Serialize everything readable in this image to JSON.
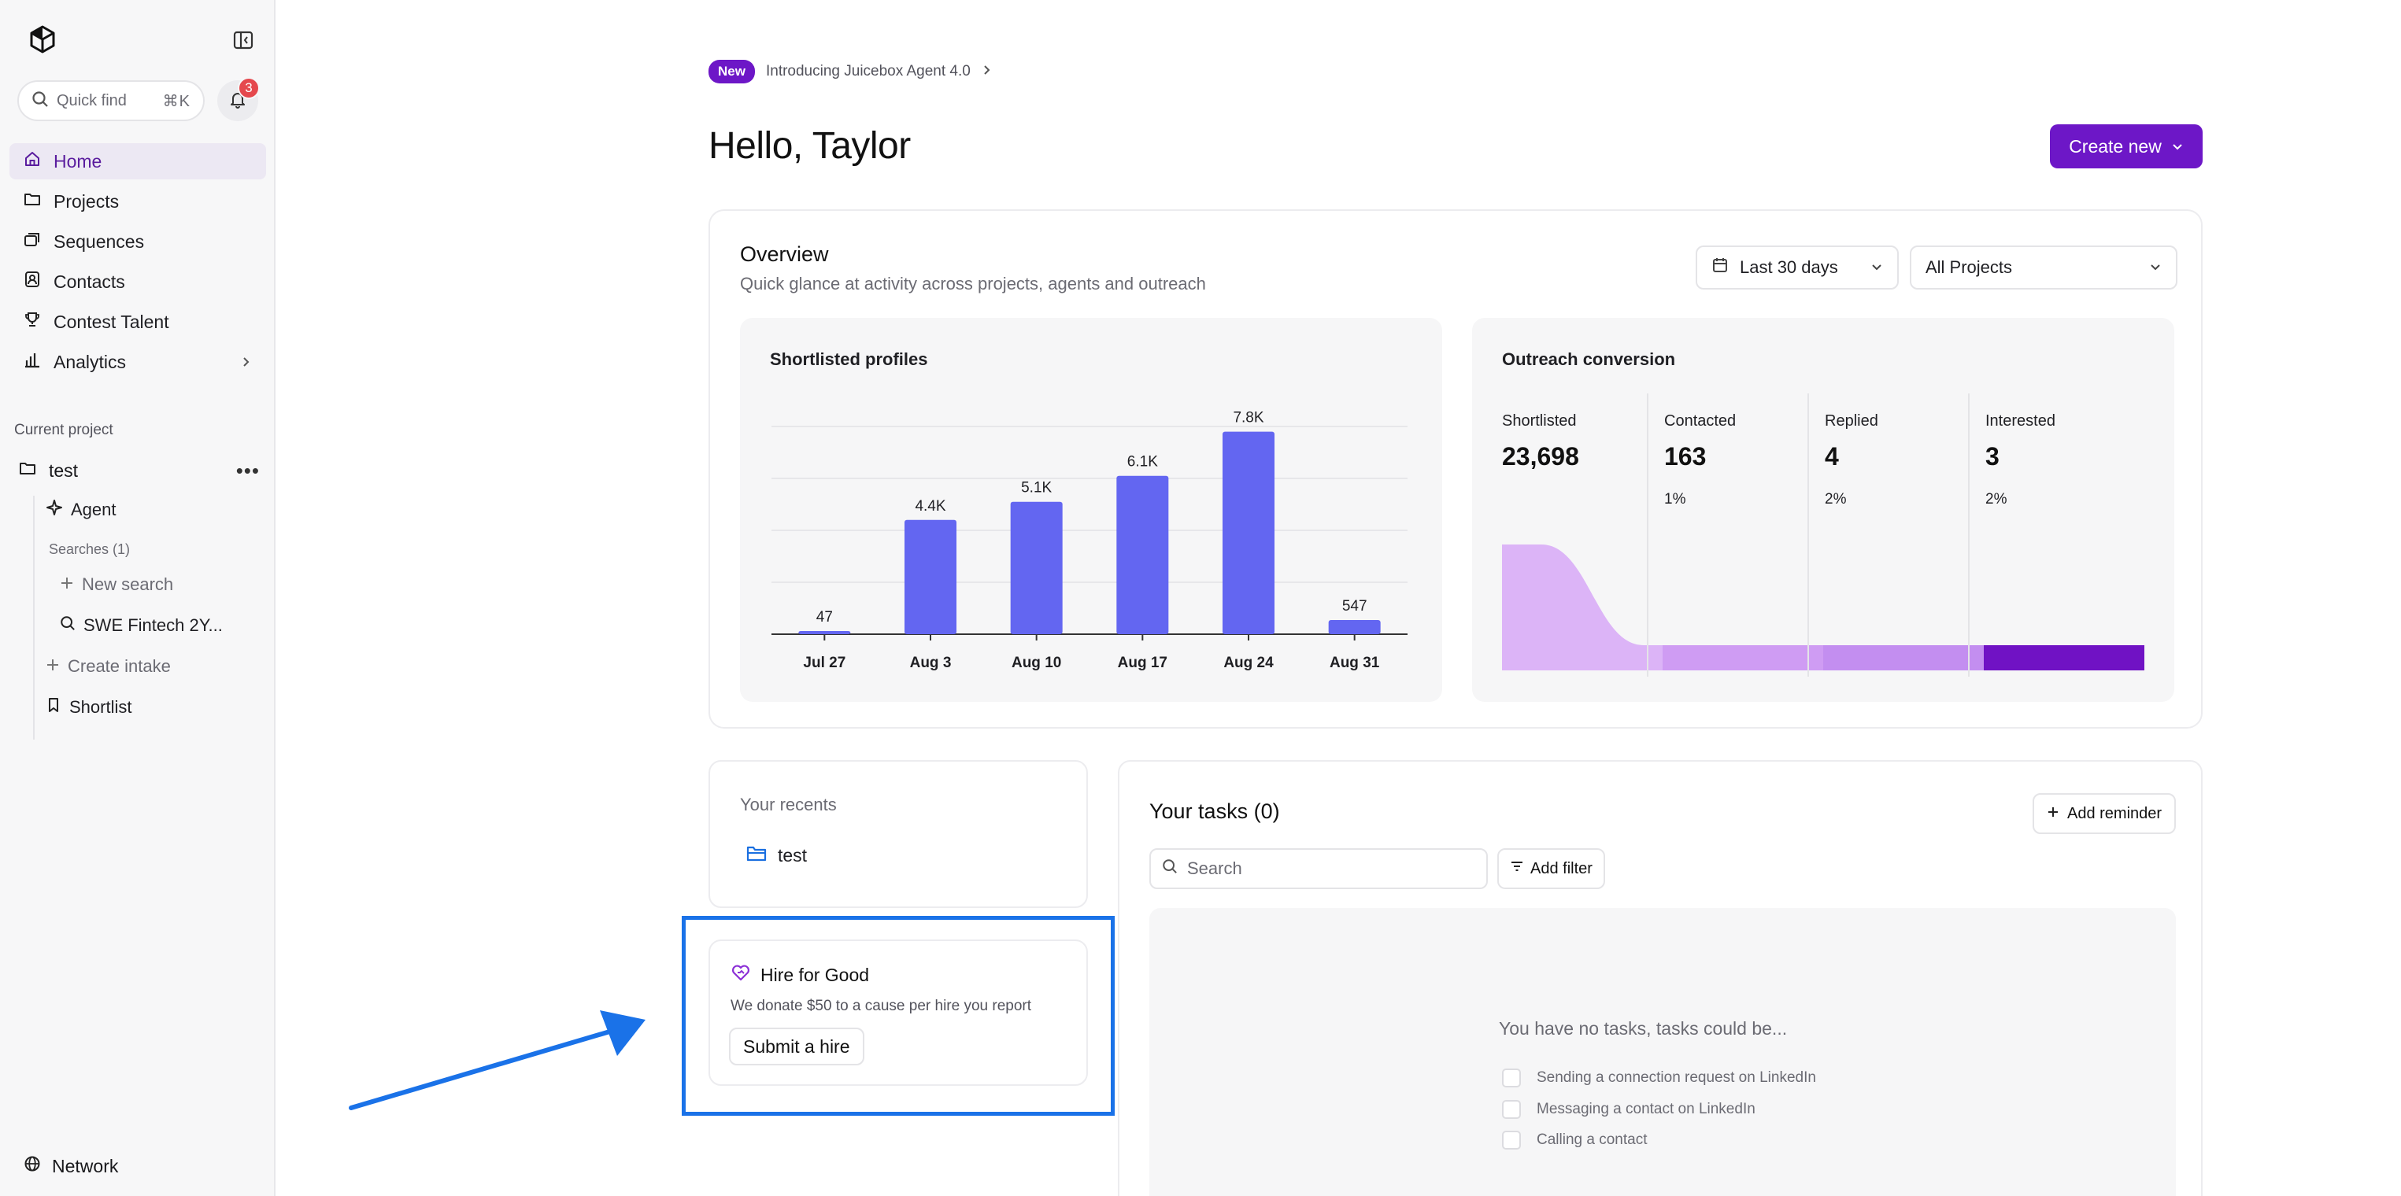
{
  "sidebar": {
    "quickfind_placeholder": "Quick find",
    "quickfind_shortcut": "⌘K",
    "notification_count": "3",
    "nav": [
      {
        "label": "Home",
        "icon": "home-icon",
        "active": true
      },
      {
        "label": "Projects",
        "icon": "folder-icon"
      },
      {
        "label": "Sequences",
        "icon": "sequences-icon"
      },
      {
        "label": "Contacts",
        "icon": "contacts-icon"
      },
      {
        "label": "Contest Talent",
        "icon": "trophy-icon"
      },
      {
        "label": "Analytics",
        "icon": "bar-chart-icon"
      }
    ],
    "current_project_label": "Current project",
    "project_name": "test",
    "agent_label": "Agent",
    "searches_label": "Searches (1)",
    "new_search_label": "New search",
    "search_item_label": "SWE Fintech 2Y...",
    "create_intake_label": "Create intake",
    "shortlist_label": "Shortlist",
    "network_label": "Network"
  },
  "announcement": {
    "badge": "New",
    "text": "Introducing Juicebox Agent 4.0"
  },
  "greeting": "Hello, Taylor",
  "create_button_label": "Create new",
  "overview": {
    "title": "Overview",
    "subtitle": "Quick glance at activity across projects, agents and outreach",
    "date_range": "Last 30 days",
    "project_filter": "All Projects"
  },
  "chart_data": [
    {
      "type": "bar",
      "title": "Shortlisted profiles",
      "categories": [
        "Jul 27",
        "Aug 3",
        "Aug 10",
        "Aug 17",
        "Aug 24",
        "Aug 31"
      ],
      "values": [
        47,
        4400,
        5100,
        6100,
        7800,
        547
      ],
      "data_labels": [
        "47",
        "4.4K",
        "5.1K",
        "6.1K",
        "7.8K",
        "547"
      ],
      "ylim": [
        0,
        8000
      ],
      "grid": true,
      "color": "#6366f1"
    },
    {
      "type": "area",
      "title": "Outreach conversion",
      "categories": [
        "Shortlisted",
        "Contacted",
        "Replied",
        "Interested"
      ],
      "values": [
        23698,
        163,
        4,
        3
      ],
      "value_labels": [
        "23,698",
        "163",
        "4",
        "3"
      ],
      "percent_labels": [
        "",
        "1%",
        "2%",
        "2%"
      ],
      "colors": [
        "#dcb4f7",
        "#cf9cf3",
        "#c38ef0",
        "#7012c4"
      ]
    }
  ],
  "recents": {
    "title": "Your recents",
    "items": [
      {
        "label": "test",
        "icon": "folder-icon"
      }
    ]
  },
  "hire_for_good": {
    "title": "Hire for Good",
    "description": "We donate $50 to a cause per hire you report",
    "button": "Submit a hire"
  },
  "tasks": {
    "title": "Your tasks (0)",
    "add_reminder": "Add reminder",
    "search_placeholder": "Search",
    "add_filter": "Add filter",
    "empty_message": "You have no tasks, tasks could be...",
    "suggestions": [
      "Sending a connection request on LinkedIn",
      "Messaging a contact on LinkedIn",
      "Calling a contact"
    ]
  },
  "colors": {
    "brand": "#6d17c7",
    "bar": "#6366f1",
    "highlight": "#1a72e8",
    "badge_red": "#e5484d"
  }
}
